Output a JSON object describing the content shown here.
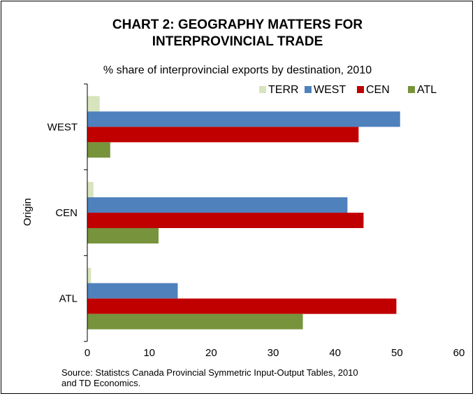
{
  "page": {
    "title_line1": "CHART 2: GEOGRAPHY MATTERS FOR",
    "title_line2": "INTERPROVINCIAL TRADE",
    "subtitle": "% share of interprovincial exports by destination, 2010",
    "source_line1": "Source: Statistcs Canada Provincial Symmetric Input-Output Tables, 2010",
    "source_line2": "and TD Economics."
  },
  "chart_data": {
    "type": "bar",
    "orientation": "horizontal",
    "title": "CHART 2: GEOGRAPHY MATTERS FOR INTERPROVINCIAL TRADE",
    "subtitle": "% share of interprovincial exports by destination, 2010",
    "ylabel": "Origin",
    "xlabel": "",
    "categories": [
      "WEST",
      "CEN",
      "ATL"
    ],
    "series": [
      {
        "name": "TERR",
        "color": "#d7e4bd",
        "values": [
          2,
          1,
          0.6
        ]
      },
      {
        "name": "WEST",
        "color": "#4f81bd",
        "values": [
          50.5,
          42,
          14.6
        ]
      },
      {
        "name": "CEN",
        "color": "#c00000",
        "values": [
          43.8,
          44.6,
          49.9
        ]
      },
      {
        "name": "ATL",
        "color": "#77933c",
        "values": [
          3.7,
          11.5,
          34.8
        ]
      }
    ],
    "xlim": [
      0,
      60
    ],
    "xticks": [
      0,
      10,
      20,
      30,
      40,
      50,
      60
    ],
    "grid": false,
    "legend_position": "top-right"
  }
}
